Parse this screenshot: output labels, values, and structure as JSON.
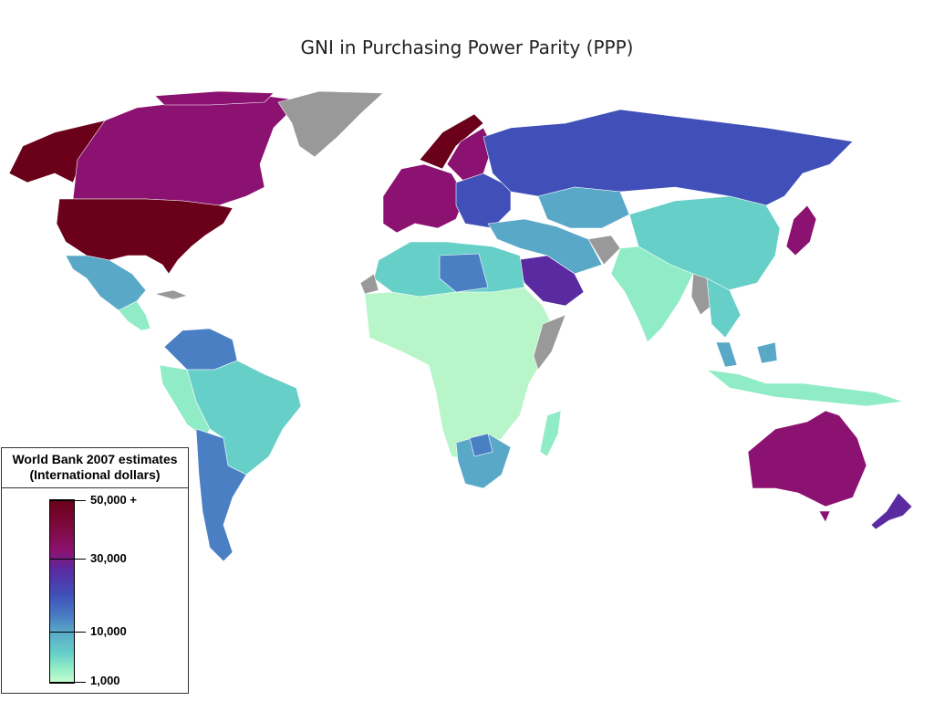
{
  "slide": {
    "title": "GNI in Purchasing Power Parity (PPP)"
  },
  "legend": {
    "title": "World Bank 2007 estimates",
    "subtitle": "(International dollars)",
    "scale": [
      {
        "label": "50,000 +",
        "value": 50000
      },
      {
        "label": "30,000",
        "value": 30000
      },
      {
        "label": "10,000",
        "value": 10000
      },
      {
        "label": "1,000",
        "value": 1000
      }
    ]
  },
  "colors": {
    "over_50000": "#6a0019",
    "around_40000": "#8b1270",
    "around_30000": "#5a2aa0",
    "around_20000": "#4050b8",
    "around_10000": "#5aa8c8",
    "around_5000": "#66cfc8",
    "under_3000": "#b8f5c8",
    "no_data": "#999999"
  }
}
